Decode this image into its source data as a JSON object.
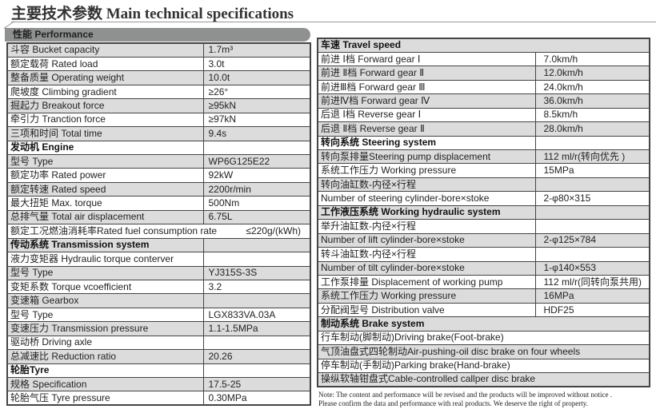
{
  "title": "主要技术参数 Main technical specifications",
  "performance_header": "性能 Performance",
  "left_rows": [
    {
      "label": "斗容 Bucket capacity",
      "value": "1.7m³"
    },
    {
      "label": "额定载荷 Rated load",
      "value": "3.0t"
    },
    {
      "label": "整备质量 Operating weight",
      "value": "10.0t"
    },
    {
      "label": "爬坡度 Climbing gradient",
      "value": "≥26°"
    },
    {
      "label": "掘起力 Breakout force",
      "value": "≥95kN"
    },
    {
      "label": "牵引力 Tranction force",
      "value": "≥97kN"
    },
    {
      "label": "三项和时间 Total time",
      "value": "9.4s"
    },
    {
      "label": "发动机 Engine",
      "value": "",
      "header": true
    },
    {
      "label": "型号 Type",
      "value": "WP6G125E22"
    },
    {
      "label": "额定功率 Rated power",
      "value": "92kW"
    },
    {
      "label": "额定转速 Rated speed",
      "value": "2200r/min"
    },
    {
      "label": "最大扭矩 Max. torque",
      "value": "500Nm"
    },
    {
      "label": "总排气量 Total air displacement",
      "value": "6.75L"
    },
    {
      "label": "额定工况燃油消耗率Rated fuel consumption rate",
      "value": "≤220g/(kWh)",
      "span": true
    },
    {
      "label": "传动系统 Transmission system",
      "value": "",
      "header": true
    },
    {
      "label": "液力变矩器 Hydraulic torque conterver",
      "value": ""
    },
    {
      "label": "型号 Type",
      "value": "YJ315S-3S"
    },
    {
      "label": "变矩系数 Torque vcoefficient",
      "value": "3.2"
    },
    {
      "label": "变速箱 Gearbox",
      "value": ""
    },
    {
      "label": "型号 Type",
      "value": "LGX833VA.03A"
    },
    {
      "label": "变速压力 Transmission pressure",
      "value": "1.1-1.5MPa"
    },
    {
      "label": "驱动桥 Driving axle",
      "value": ""
    },
    {
      "label": "总减速比 Reduction ratio",
      "value": "20.26"
    },
    {
      "label": "轮胎Tyre",
      "value": "",
      "header": true
    },
    {
      "label": "规格 Specification",
      "value": "17.5-25"
    },
    {
      "label": "轮胎气压 Tyre pressure",
      "value": "0.30MPa"
    }
  ],
  "right_rows": [
    {
      "label": "车速 Travel speed",
      "value": "",
      "header": true,
      "span": true
    },
    {
      "label": "前进 Ⅰ档 Forward gear Ⅰ",
      "value": "7.0km/h"
    },
    {
      "label": "前进 Ⅱ档 Forward gear Ⅱ",
      "value": "12.0km/h"
    },
    {
      "label": "前进Ⅲ档 Forward gear Ⅲ",
      "value": "24.0km/h"
    },
    {
      "label": "前进Ⅳ档 Forward gear Ⅳ",
      "value": "36.0km/h"
    },
    {
      "label": "后退 Ⅰ档 Reverse gear Ⅰ",
      "value": "8.5km/h"
    },
    {
      "label": "后退 Ⅱ档 Reverse gear Ⅱ",
      "value": "28.0km/h"
    },
    {
      "label": "转向系统 Steering system",
      "value": "",
      "header": true
    },
    {
      "label": "转向泵排量Steering pump displacement",
      "value": "112 ml/r(转向优先 )"
    },
    {
      "label": "系统工作压力 Working pressure",
      "value": "15MPa"
    },
    {
      "label": "转向油缸数-内径×行程",
      "value": ""
    },
    {
      "label": "Number of steering cylinder-bore×stoke",
      "value": "2-φ80×315"
    },
    {
      "label": "工作液压系统 Working hydraulic system",
      "value": "",
      "header": true
    },
    {
      "label": "举升油缸数-内径×行程",
      "value": ""
    },
    {
      "label": "Number of lift cylinder-bore×stoke",
      "value": "2-φ125×784"
    },
    {
      "label": "转斗油缸数-内径×行程",
      "value": ""
    },
    {
      "label": "Number of tilt cylinder-bore×stoke",
      "value": "1-φ140×553"
    },
    {
      "label": "工作泵排量 Displacement of working pump",
      "value": "112 ml/r(同转向泵共用)"
    },
    {
      "label": "系统工作压力 Working pressure",
      "value": "16MPa"
    },
    {
      "label": "分配阀型号 Distribution valve",
      "value": "HDF25"
    },
    {
      "label": "制动系统 Brake system",
      "value": "",
      "header": true,
      "span": true
    },
    {
      "label": "行车制动(脚制动)Driving brake(Foot-brake)",
      "value": "",
      "span": true
    },
    {
      "label": "气顶油盘式四轮制动Air-pushing-oil disc brake on four wheels",
      "value": "",
      "span": true
    },
    {
      "label": "停车制动(手制动)Parking brake(Hand-brake)",
      "value": "",
      "span": true
    },
    {
      "label": "操纵软轴钳盘式Cable-controlled callper disc brake",
      "value": "",
      "span": true
    }
  ],
  "note": [
    "Note: The content and performance will be revised and the products will be improved without notice .",
    "Please confirm the data and performance with real products. We deserve the right of property."
  ]
}
